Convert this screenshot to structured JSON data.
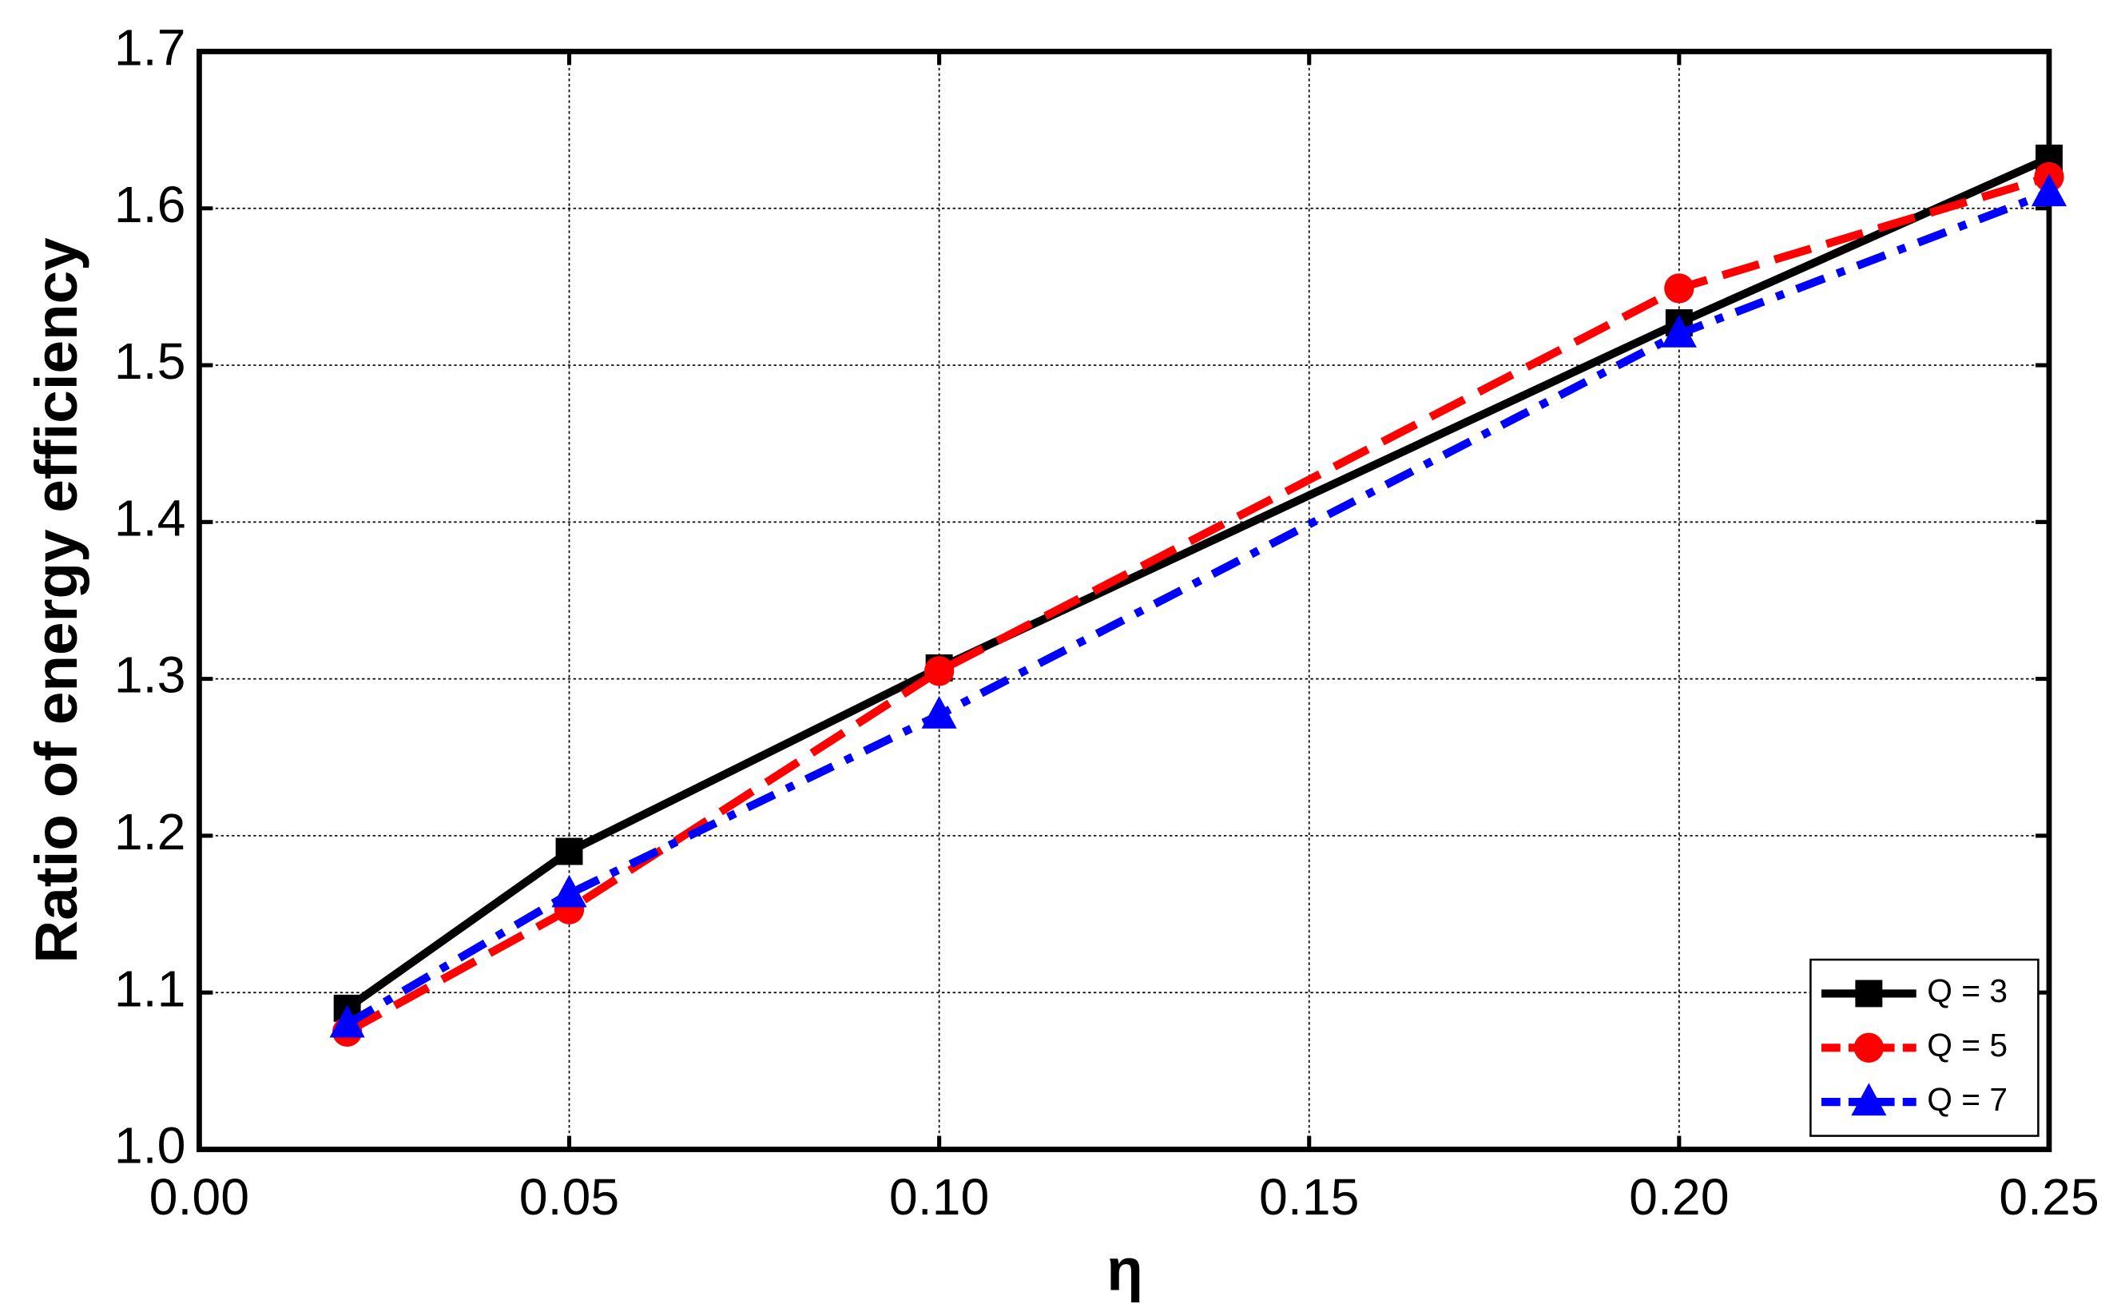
{
  "chart_data": {
    "type": "line",
    "x_label": "η",
    "y_label": "Ratio of energy efficiency",
    "x": [
      0.02,
      0.05,
      0.1,
      0.2,
      0.25
    ],
    "series": [
      {
        "name": "Q = 3",
        "color": "#000000",
        "line_style": "solid",
        "marker": "square",
        "values": [
          1.09,
          1.19,
          1.307,
          1.527,
          1.632
        ]
      },
      {
        "name": "Q = 5",
        "color": "#ff0000",
        "line_style": "dash",
        "marker": "circle",
        "values": [
          1.075,
          1.153,
          1.305,
          1.549,
          1.62
        ]
      },
      {
        "name": "Q = 7",
        "color": "#0000ff",
        "line_style": "dashdot",
        "marker": "triangle",
        "values": [
          1.08,
          1.163,
          1.277,
          1.52,
          1.61
        ]
      }
    ],
    "xlim": [
      0,
      0.25
    ],
    "ylim": [
      1.0,
      1.7
    ],
    "xticks": [
      {
        "value": 0,
        "label": "0.00"
      },
      0.05,
      {
        "value": 0.1,
        "label": "0.10"
      },
      0.15,
      {
        "value": 0.2,
        "label": "0.20"
      },
      0.25
    ],
    "yticks": [
      {
        "value": 1.0,
        "label": "1.0"
      },
      1.1,
      1.2,
      1.3,
      1.4,
      1.5,
      1.6,
      1.7
    ],
    "grid": true,
    "legend": "lower right"
  }
}
